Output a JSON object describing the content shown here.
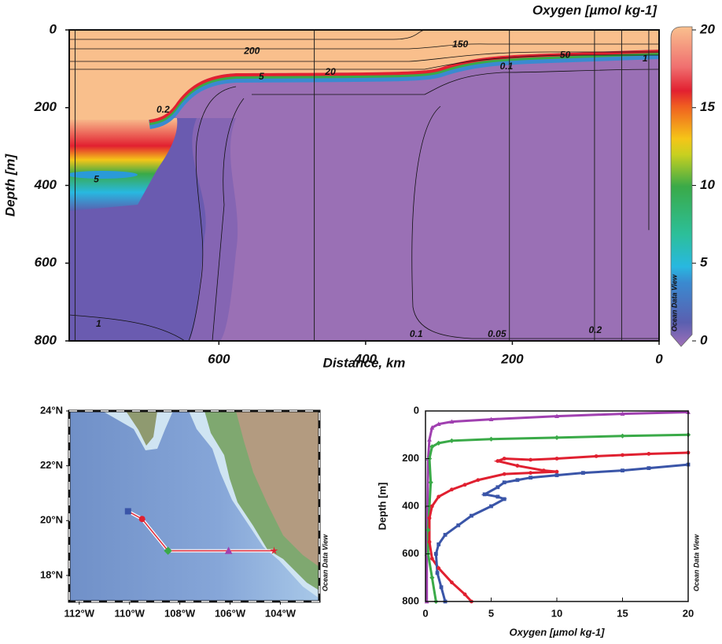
{
  "chart_data": [
    {
      "type": "section",
      "title": "Oxygen [µmol kg-1]",
      "xlabel": "Distance, km",
      "ylabel": "Depth [m]",
      "xlim": [
        804,
        0
      ],
      "ylim": [
        0,
        800
      ],
      "xticks": [
        600,
        400,
        200,
        0
      ],
      "yticks": [
        0,
        200,
        400,
        600,
        800
      ],
      "stations": {
        "distance": [
          796,
          470,
          204,
          88,
          51,
          14
        ],
        "bottom": [
          800,
          800,
          800,
          800,
          800,
          515
        ]
      },
      "contour_labels": [
        {
          "x": 555,
          "y": 55,
          "value": 200
        },
        {
          "x": 271,
          "y": 38,
          "value": 150
        },
        {
          "x": 128,
          "y": 65,
          "value": 50
        },
        {
          "x": 19,
          "y": 75,
          "value": 1
        },
        {
          "x": 208,
          "y": 95,
          "value": 0.1
        },
        {
          "x": 448,
          "y": 109,
          "value": 20
        },
        {
          "x": 542,
          "y": 121,
          "value": 5
        },
        {
          "x": 676,
          "y": 206,
          "value": 0.2
        },
        {
          "x": 767,
          "y": 385,
          "value": 5
        },
        {
          "x": 764,
          "y": 757,
          "value": 1
        },
        {
          "x": 331,
          "y": 783,
          "value": 0.1
        },
        {
          "x": 221,
          "y": 783,
          "value": 0.05
        },
        {
          "x": 87,
          "y": 773,
          "value": 0.2
        }
      ],
      "colorbar": {
        "lim": [
          0,
          20
        ],
        "ticks": [
          0,
          5,
          10,
          15,
          20
        ],
        "stops": [
          {
            "value": 0,
            "color": "#a070b8"
          },
          {
            "value": 1.5,
            "color": "#5a5fb0"
          },
          {
            "value": 4,
            "color": "#3a8ad0"
          },
          {
            "value": 5,
            "color": "#28b8e0"
          },
          {
            "value": 7,
            "color": "#2cbf9a"
          },
          {
            "value": 10,
            "color": "#3aaa48"
          },
          {
            "value": 12,
            "color": "#c8d020"
          },
          {
            "value": 13,
            "color": "#f5c518"
          },
          {
            "value": 15,
            "color": "#f06020"
          },
          {
            "value": 16,
            "color": "#e22030"
          },
          {
            "value": 17.5,
            "color": "#f07070"
          },
          {
            "value": 20,
            "color": "#f9c08e"
          }
        ]
      },
      "watermark": "Ocean Data View"
    },
    {
      "type": "map",
      "xlim": [
        -112.4,
        -102.45
      ],
      "ylim": [
        17.05,
        24
      ],
      "xticks": [
        {
          "value": -112,
          "label": "112°W"
        },
        {
          "value": -110,
          "label": "110°W"
        },
        {
          "value": -108,
          "label": "108°W"
        },
        {
          "value": -106,
          "label": "106°W"
        },
        {
          "value": -104,
          "label": "104°W"
        }
      ],
      "yticks": [
        {
          "value": 18,
          "label": "18°N"
        },
        {
          "value": 20,
          "label": "20°N"
        },
        {
          "value": 22,
          "label": "22°N"
        },
        {
          "value": 24,
          "label": "24°N"
        }
      ],
      "track": {
        "color": "#e03040",
        "x": [
          -110.06,
          -109.5,
          -108.47,
          -106.06,
          -104.25
        ],
        "values": [
          20.34,
          20.06,
          18.9,
          18.9,
          18.9
        ]
      },
      "series": [
        {
          "color": "#3a55a8",
          "marker": "square",
          "x": [
            -110.06
          ],
          "values": [
            20.34
          ]
        },
        {
          "color": "#e02030",
          "marker": "circle",
          "x": [
            -109.5
          ],
          "values": [
            20.06
          ]
        },
        {
          "color": "#3aaa48",
          "marker": "diamond",
          "x": [
            -108.47
          ],
          "values": [
            18.9
          ]
        },
        {
          "color": "#a040b0",
          "marker": "triangle",
          "x": [
            -106.06
          ],
          "values": [
            18.9
          ]
        },
        {
          "color": "#e02030",
          "marker": "star",
          "x": [
            -104.25
          ],
          "values": [
            18.9
          ]
        }
      ],
      "watermark": "Ocean Data View"
    },
    {
      "type": "profile",
      "xlabel": "Oxygen [µmol kg-1]",
      "ylabel": "Depth [m]",
      "xlim": [
        0,
        20
      ],
      "ylim": [
        0,
        800
      ],
      "xticks": [
        0,
        5,
        10,
        15,
        20
      ],
      "yticks": [
        0,
        200,
        400,
        600,
        800
      ],
      "series": [
        {
          "color": "#a040b0",
          "marker": "triangle",
          "x": [
            20,
            15,
            10,
            5,
            2,
            1,
            0.5,
            0.3,
            0.2,
            0.15,
            0.1,
            0.1
          ],
          "values": [
            5,
            12,
            22,
            35,
            45,
            55,
            70,
            120,
            200,
            400,
            600,
            800
          ]
        },
        {
          "color": "#3aaa48",
          "marker": "diamond",
          "x": [
            20,
            15,
            10,
            5,
            2,
            1,
            0.5,
            0.3,
            0.4,
            0.3,
            0.2,
            0.2,
            0.5,
            0.8
          ],
          "values": [
            100,
            105,
            112,
            118,
            125,
            135,
            150,
            200,
            300,
            400,
            500,
            600,
            700,
            800
          ]
        },
        {
          "color": "#e02030",
          "marker": "circle",
          "x": [
            20,
            17,
            15,
            13,
            10,
            8,
            6,
            5.5,
            7,
            9,
            10,
            8,
            6,
            4,
            3,
            2,
            1,
            0.5,
            0.3,
            0.3,
            0.5,
            1,
            2,
            3,
            3.5
          ],
          "values": [
            175,
            180,
            185,
            190,
            200,
            205,
            200,
            210,
            230,
            250,
            255,
            260,
            265,
            290,
            310,
            330,
            360,
            400,
            450,
            550,
            620,
            660,
            720,
            770,
            800
          ]
        },
        {
          "color": "#3a55a8",
          "marker": "square",
          "x": [
            20,
            17,
            15,
            12,
            10,
            8,
            7,
            6,
            5.5,
            4.5,
            5.5,
            6,
            5,
            3.5,
            2.5,
            1.5,
            1,
            0.8,
            0.9,
            1.2,
            1.5
          ],
          "values": [
            225,
            240,
            250,
            260,
            270,
            280,
            290,
            300,
            320,
            350,
            360,
            370,
            400,
            440,
            480,
            520,
            560,
            600,
            680,
            740,
            800
          ]
        }
      ],
      "watermark": "Ocean Data View"
    }
  ]
}
